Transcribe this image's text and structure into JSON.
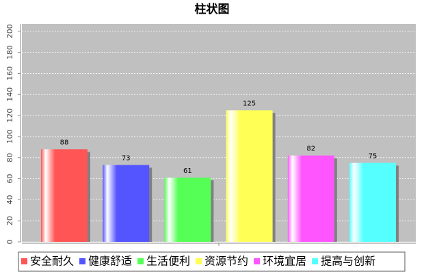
{
  "chart_data": {
    "type": "bar",
    "title": "柱状图",
    "categories": [
      null
    ],
    "series": [
      {
        "name": "安全耐久",
        "color": "#ff5555",
        "values": [
          88
        ]
      },
      {
        "name": "健康舒适",
        "color": "#5555ff",
        "values": [
          73
        ]
      },
      {
        "name": "生活便利",
        "color": "#55ff55",
        "values": [
          61
        ]
      },
      {
        "name": "资源节约",
        "color": "#ffff55",
        "values": [
          125
        ]
      },
      {
        "name": "环境宜居",
        "color": "#ff55ff",
        "values": [
          82
        ]
      },
      {
        "name": "提高与创新",
        "color": "#55ffff",
        "values": [
          75
        ]
      }
    ],
    "ylim": [
      0,
      207
    ],
    "yticks": [
      0,
      20,
      40,
      60,
      80,
      100,
      120,
      140,
      160,
      180,
      200
    ],
    "grid": true
  }
}
